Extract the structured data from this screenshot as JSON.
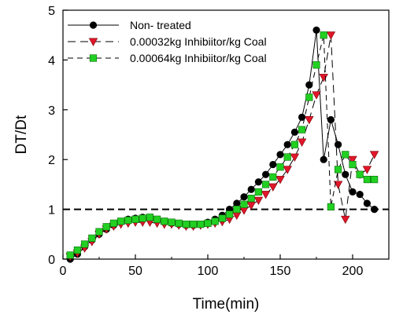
{
  "chart_data": {
    "type": "scatter",
    "title": "",
    "xlabel": "Time(min)",
    "ylabel": "DT/Dt",
    "xlim": [
      0,
      225
    ],
    "ylim": [
      0,
      5
    ],
    "xticks": [
      0,
      50,
      100,
      150,
      200
    ],
    "yticks": [
      0,
      1,
      2,
      3,
      4,
      5
    ],
    "grid": false,
    "legend_position": "top-left",
    "reference_line": {
      "y": 1,
      "style": "dashed",
      "color": "#000000"
    },
    "series": [
      {
        "name": "Non- treated",
        "marker": "circle",
        "marker_color": "#000000",
        "line_style": "solid",
        "line_color": "#000000",
        "x": [
          5,
          10,
          15,
          20,
          25,
          30,
          35,
          40,
          45,
          50,
          55,
          60,
          65,
          70,
          75,
          80,
          85,
          90,
          95,
          100,
          105,
          110,
          115,
          120,
          125,
          130,
          135,
          140,
          145,
          150,
          155,
          160,
          165,
          170,
          175,
          180,
          185,
          190,
          195,
          200,
          205,
          210,
          215
        ],
        "y": [
          0.0,
          0.1,
          0.25,
          0.38,
          0.5,
          0.6,
          0.68,
          0.75,
          0.8,
          0.82,
          0.84,
          0.82,
          0.78,
          0.74,
          0.72,
          0.7,
          0.68,
          0.68,
          0.7,
          0.74,
          0.8,
          0.88,
          1.0,
          1.12,
          1.25,
          1.4,
          1.55,
          1.7,
          1.9,
          2.1,
          2.3,
          2.55,
          2.85,
          3.5,
          4.6,
          2.0,
          2.8,
          2.3,
          1.7,
          1.35,
          1.3,
          1.12,
          1.0
        ]
      },
      {
        "name": "0.00032kg Inhibiitor/kg Coal",
        "marker": "triangle-down",
        "marker_color": "#e0162b",
        "line_style": "long-dash",
        "line_color": "#000000",
        "x": [
          5,
          10,
          15,
          20,
          25,
          30,
          35,
          40,
          45,
          50,
          55,
          60,
          65,
          70,
          75,
          80,
          85,
          90,
          95,
          100,
          105,
          110,
          115,
          120,
          125,
          130,
          135,
          140,
          145,
          150,
          155,
          160,
          165,
          170,
          175,
          180,
          185,
          190,
          195,
          200,
          205,
          210,
          215
        ],
        "y": [
          0.05,
          0.12,
          0.22,
          0.35,
          0.5,
          0.6,
          0.66,
          0.7,
          0.72,
          0.74,
          0.74,
          0.74,
          0.72,
          0.7,
          0.7,
          0.68,
          0.66,
          0.66,
          0.68,
          0.7,
          0.72,
          0.75,
          0.8,
          0.88,
          0.98,
          1.08,
          1.18,
          1.3,
          1.45,
          1.6,
          1.8,
          2.05,
          2.35,
          2.8,
          3.3,
          3.65,
          4.5,
          1.5,
          0.8,
          2.0,
          1.7,
          1.8,
          2.1
        ]
      },
      {
        "name": "0.00064kg Inhibiitor/kg Coal",
        "marker": "square",
        "marker_color": "#22d022",
        "line_style": "dash",
        "line_color": "#000000",
        "x": [
          5,
          10,
          15,
          20,
          25,
          30,
          35,
          40,
          45,
          50,
          55,
          60,
          65,
          70,
          75,
          80,
          85,
          90,
          95,
          100,
          105,
          110,
          115,
          120,
          125,
          130,
          135,
          140,
          145,
          150,
          155,
          160,
          165,
          170,
          175,
          180,
          185,
          190,
          195,
          200,
          205,
          210,
          215
        ],
        "y": [
          0.08,
          0.18,
          0.3,
          0.42,
          0.55,
          0.65,
          0.72,
          0.76,
          0.78,
          0.8,
          0.82,
          0.84,
          0.8,
          0.76,
          0.74,
          0.72,
          0.7,
          0.7,
          0.7,
          0.72,
          0.76,
          0.82,
          0.9,
          1.0,
          1.1,
          1.22,
          1.35,
          1.5,
          1.65,
          1.85,
          2.05,
          2.3,
          2.6,
          3.25,
          3.9,
          4.5,
          1.05,
          1.8,
          2.1,
          1.9,
          1.7,
          1.6,
          1.6
        ]
      }
    ]
  }
}
